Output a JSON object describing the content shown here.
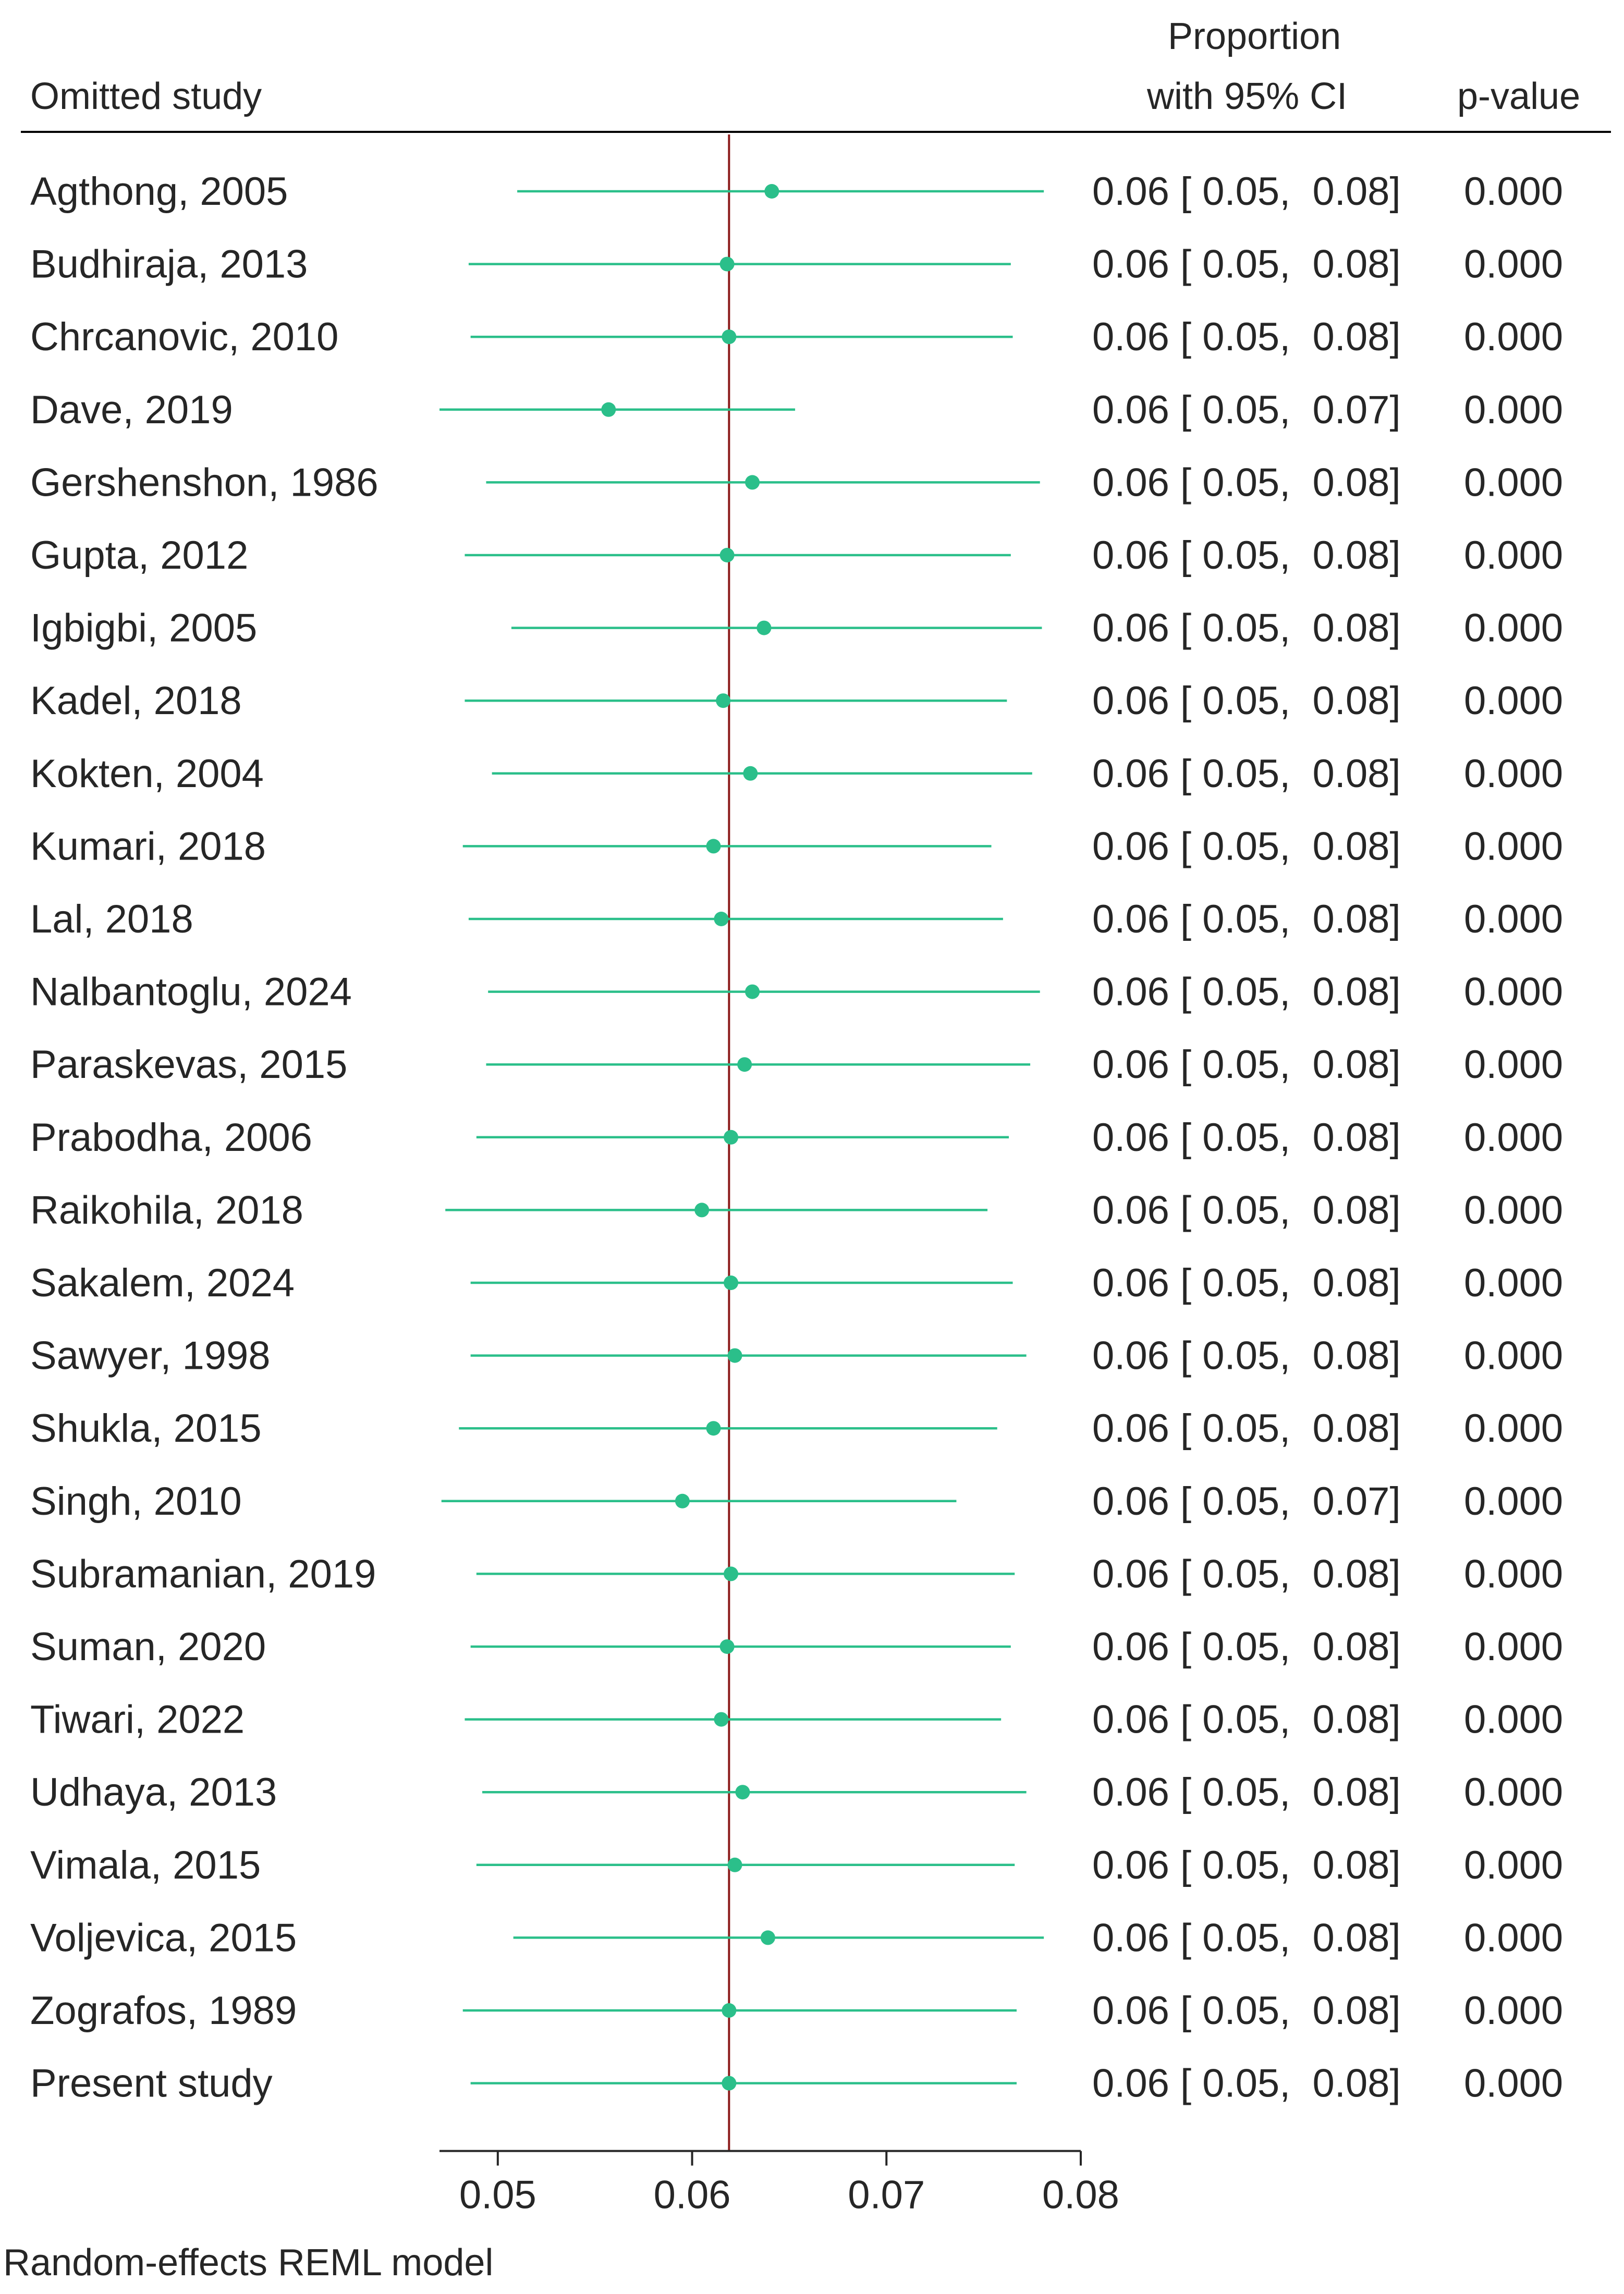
{
  "chart_data": {
    "type": "forest",
    "title": "",
    "xlabel": "",
    "ylabel": "",
    "xlim": [
      0.047,
      0.08
    ],
    "xticks": [
      0.05,
      0.06,
      0.07,
      0.08
    ],
    "xtick_labels": [
      "0.05",
      "0.06",
      "0.07",
      "0.08"
    ],
    "reference_line": 0.0619,
    "columns": {
      "study": "Omitted study",
      "effect_line1": "Proportion",
      "effect_line2": "with 95% CI",
      "pvalue": "p-value"
    },
    "rows": [
      {
        "study": "Agthong, 2005",
        "est": 0.0641,
        "lo": 0.051,
        "hi": 0.0781,
        "ci_text": "0.06 [ 0.05,  0.08]",
        "p": "0.000"
      },
      {
        "study": "Budhiraja, 2013",
        "est": 0.0618,
        "lo": 0.0485,
        "hi": 0.0764,
        "ci_text": "0.06 [ 0.05,  0.08]",
        "p": "0.000"
      },
      {
        "study": "Chrcanovic, 2010",
        "est": 0.0619,
        "lo": 0.0486,
        "hi": 0.0765,
        "ci_text": "0.06 [ 0.05,  0.08]",
        "p": "0.000"
      },
      {
        "study": "Dave, 2019",
        "est": 0.0557,
        "lo": 0.047,
        "hi": 0.0653,
        "ci_text": "0.06 [ 0.05,  0.07]",
        "p": "0.000"
      },
      {
        "study": "Gershenshon, 1986",
        "est": 0.0631,
        "lo": 0.0494,
        "hi": 0.0779,
        "ci_text": "0.06 [ 0.05,  0.08]",
        "p": "0.000"
      },
      {
        "study": "Gupta, 2012",
        "est": 0.0618,
        "lo": 0.0483,
        "hi": 0.0764,
        "ci_text": "0.06 [ 0.05,  0.08]",
        "p": "0.000"
      },
      {
        "study": "Igbigbi, 2005",
        "est": 0.0637,
        "lo": 0.0507,
        "hi": 0.078,
        "ci_text": "0.06 [ 0.05,  0.08]",
        "p": "0.000"
      },
      {
        "study": "Kadel, 2018",
        "est": 0.0616,
        "lo": 0.0483,
        "hi": 0.0762,
        "ci_text": "0.06 [ 0.05,  0.08]",
        "p": "0.000"
      },
      {
        "study": "Kokten, 2004",
        "est": 0.063,
        "lo": 0.0497,
        "hi": 0.0775,
        "ci_text": "0.06 [ 0.05,  0.08]",
        "p": "0.000"
      },
      {
        "study": "Kumari, 2018",
        "est": 0.0611,
        "lo": 0.0482,
        "hi": 0.0754,
        "ci_text": "0.06 [ 0.05,  0.08]",
        "p": "0.000"
      },
      {
        "study": "Lal, 2018",
        "est": 0.0615,
        "lo": 0.0485,
        "hi": 0.076,
        "ci_text": "0.06 [ 0.05,  0.08]",
        "p": "0.000"
      },
      {
        "study": "Nalbantoglu, 2024",
        "est": 0.0631,
        "lo": 0.0495,
        "hi": 0.0779,
        "ci_text": "0.06 [ 0.05,  0.08]",
        "p": "0.000"
      },
      {
        "study": "Paraskevas, 2015",
        "est": 0.0627,
        "lo": 0.0494,
        "hi": 0.0774,
        "ci_text": "0.06 [ 0.05,  0.08]",
        "p": "0.000"
      },
      {
        "study": "Prabodha, 2006",
        "est": 0.062,
        "lo": 0.0489,
        "hi": 0.0763,
        "ci_text": "0.06 [ 0.05,  0.08]",
        "p": "0.000"
      },
      {
        "study": "Raikohila, 2018",
        "est": 0.0605,
        "lo": 0.0473,
        "hi": 0.0752,
        "ci_text": "0.06 [ 0.05,  0.08]",
        "p": "0.000"
      },
      {
        "study": "Sakalem, 2024",
        "est": 0.062,
        "lo": 0.0486,
        "hi": 0.0765,
        "ci_text": "0.06 [ 0.05,  0.08]",
        "p": "0.000"
      },
      {
        "study": "Sawyer, 1998",
        "est": 0.0622,
        "lo": 0.0486,
        "hi": 0.0772,
        "ci_text": "0.06 [ 0.05,  0.08]",
        "p": "0.000"
      },
      {
        "study": "Shukla, 2015",
        "est": 0.0611,
        "lo": 0.048,
        "hi": 0.0757,
        "ci_text": "0.06 [ 0.05,  0.08]",
        "p": "0.000"
      },
      {
        "study": "Singh, 2010",
        "est": 0.0595,
        "lo": 0.0471,
        "hi": 0.0736,
        "ci_text": "0.06 [ 0.05,  0.07]",
        "p": "0.000"
      },
      {
        "study": "Subramanian, 2019",
        "est": 0.062,
        "lo": 0.0489,
        "hi": 0.0766,
        "ci_text": "0.06 [ 0.05,  0.08]",
        "p": "0.000"
      },
      {
        "study": "Suman, 2020",
        "est": 0.0618,
        "lo": 0.0486,
        "hi": 0.0764,
        "ci_text": "0.06 [ 0.05,  0.08]",
        "p": "0.000"
      },
      {
        "study": "Tiwari, 2022",
        "est": 0.0615,
        "lo": 0.0483,
        "hi": 0.0759,
        "ci_text": "0.06 [ 0.05,  0.08]",
        "p": "0.000"
      },
      {
        "study": "Udhaya, 2013",
        "est": 0.0626,
        "lo": 0.0492,
        "hi": 0.0772,
        "ci_text": "0.06 [ 0.05,  0.08]",
        "p": "0.000"
      },
      {
        "study": "Vimala, 2015",
        "est": 0.0622,
        "lo": 0.0489,
        "hi": 0.0766,
        "ci_text": "0.06 [ 0.05,  0.08]",
        "p": "0.000"
      },
      {
        "study": "Voljevica, 2015",
        "est": 0.0639,
        "lo": 0.0508,
        "hi": 0.0781,
        "ci_text": "0.06 [ 0.05,  0.08]",
        "p": "0.000"
      },
      {
        "study": "Zografos, 1989",
        "est": 0.0619,
        "lo": 0.0482,
        "hi": 0.0767,
        "ci_text": "0.06 [ 0.05,  0.08]",
        "p": "0.000"
      },
      {
        "study": "Present study",
        "est": 0.0619,
        "lo": 0.0486,
        "hi": 0.0767,
        "ci_text": "0.06 [ 0.05,  0.08]",
        "p": "0.000"
      }
    ],
    "note": "Random-effects REML model"
  },
  "colors": {
    "marker": "#2BBF8A",
    "ci_line": "#2BBF8A",
    "reference_line": "#8B1A1A",
    "text": "#262626",
    "axis": "#262626"
  }
}
